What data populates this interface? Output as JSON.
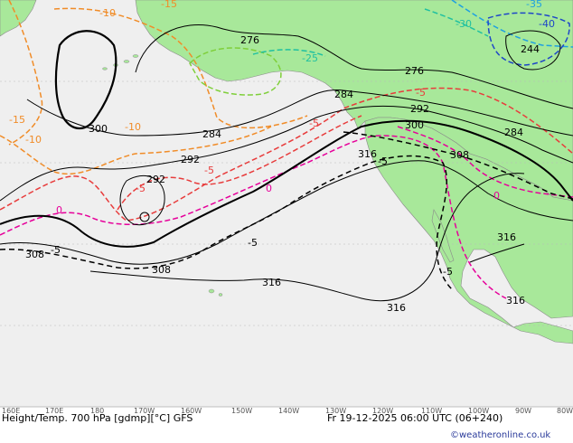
{
  "title": "Height/Temp. 700 hPa [gdmp][°C] GFS",
  "valid_time": "Fr 19-12-2025 06:00 UTC (06+240)",
  "credit": "©weatheronline.co.uk",
  "colors": {
    "ocean": "#efefef",
    "land": "#a8e89a",
    "height_contour": "#000000",
    "temp_orange": "#f08c28",
    "temp_red": "#e83c3c",
    "temp_magenta": "#e6009a",
    "temp_green": "#7fcf3a",
    "temp_teal": "#20c0a0",
    "temp_cyan": "#1ea0e0",
    "temp_blue": "#1e46c8"
  },
  "longitude_ticks": [
    "160E",
    "170E",
    "180",
    "170W",
    "160W",
    "150W",
    "140W",
    "130W",
    "120W",
    "110W",
    "100W",
    "90W",
    "80W"
  ],
  "height_labels": [
    "276",
    "276",
    "284",
    "284",
    "284",
    "292",
    "292",
    "292",
    "300",
    "300",
    "308",
    "308",
    "308",
    "316",
    "316",
    "316",
    "316",
    "316",
    "244"
  ],
  "temp_labels": [
    "-10",
    "-10",
    "-10",
    "-15",
    "-15",
    "-25",
    "-5",
    "-5",
    "-5",
    "-5",
    "0",
    "0",
    "0",
    "-5",
    "-5",
    "-5",
    "-5",
    "-30",
    "-40",
    "-35"
  ]
}
